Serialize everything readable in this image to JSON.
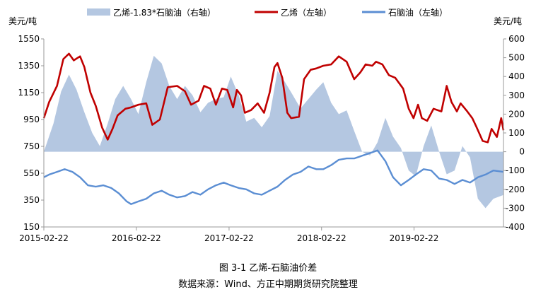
{
  "caption": {
    "figure": "图 3-1  乙烯-石脑油价差",
    "source": "数据来源：Wind、方正中期期货研究院整理"
  },
  "chart_data": {
    "type": "line",
    "left_axis": {
      "unit_label": "美元/吨",
      "ticks": [
        150,
        350,
        550,
        750,
        950,
        1150,
        1350,
        1550
      ],
      "range": [
        150,
        1550
      ]
    },
    "right_axis": {
      "unit_label": "美元/吨",
      "ticks": [
        -400,
        -300,
        -200,
        -100,
        0,
        100,
        200,
        300,
        400,
        500,
        600
      ],
      "range": [
        -400,
        600
      ]
    },
    "x_ticks": [
      "2015-02-22",
      "2016-02-22",
      "2017-02-22",
      "2018-02-22",
      "2019-02-22"
    ],
    "x_range": [
      "2015-02-22",
      "2020-02-10"
    ],
    "legend_position": "top",
    "colors": {
      "spread": "#b4c7e1",
      "ethylene": "#c00000",
      "naphtha": "#5b8ed3",
      "axis": "#999999"
    },
    "series": [
      {
        "name": "乙烯-1.83*石脑油（右轴）",
        "axis": "right",
        "render": "area",
        "points": [
          [
            "2015-02-22",
            0
          ],
          [
            "2015-04-01",
            150
          ],
          [
            "2015-05-01",
            320
          ],
          [
            "2015-06-01",
            410
          ],
          [
            "2015-07-01",
            330
          ],
          [
            "2015-08-01",
            210
          ],
          [
            "2015-09-01",
            100
          ],
          [
            "2015-10-01",
            30
          ],
          [
            "2015-11-01",
            150
          ],
          [
            "2015-12-01",
            280
          ],
          [
            "2016-01-01",
            350
          ],
          [
            "2016-02-01",
            280
          ],
          [
            "2016-03-01",
            200
          ],
          [
            "2016-04-01",
            370
          ],
          [
            "2016-05-01",
            510
          ],
          [
            "2016-06-01",
            470
          ],
          [
            "2016-07-01",
            350
          ],
          [
            "2016-08-01",
            280
          ],
          [
            "2016-09-01",
            350
          ],
          [
            "2016-10-01",
            300
          ],
          [
            "2016-11-01",
            210
          ],
          [
            "2016-12-01",
            260
          ],
          [
            "2017-01-01",
            280
          ],
          [
            "2017-02-01",
            290
          ],
          [
            "2017-03-01",
            400
          ],
          [
            "2017-04-01",
            300
          ],
          [
            "2017-05-01",
            160
          ],
          [
            "2017-06-01",
            180
          ],
          [
            "2017-07-01",
            130
          ],
          [
            "2017-08-01",
            190
          ],
          [
            "2017-09-01",
            430
          ],
          [
            "2017-10-01",
            370
          ],
          [
            "2017-11-01",
            300
          ],
          [
            "2017-12-01",
            230
          ],
          [
            "2018-01-01",
            280
          ],
          [
            "2018-02-01",
            330
          ],
          [
            "2018-03-01",
            370
          ],
          [
            "2018-04-01",
            260
          ],
          [
            "2018-05-01",
            200
          ],
          [
            "2018-06-01",
            220
          ],
          [
            "2018-07-01",
            110
          ],
          [
            "2018-08-01",
            0
          ],
          [
            "2018-09-01",
            -20
          ],
          [
            "2018-10-01",
            50
          ],
          [
            "2018-11-01",
            180
          ],
          [
            "2018-12-01",
            80
          ],
          [
            "2019-01-01",
            20
          ],
          [
            "2019-02-01",
            -100
          ],
          [
            "2019-03-01",
            -130
          ],
          [
            "2019-04-01",
            30
          ],
          [
            "2019-05-01",
            140
          ],
          [
            "2019-06-01",
            0
          ],
          [
            "2019-07-01",
            -120
          ],
          [
            "2019-08-01",
            -100
          ],
          [
            "2019-09-01",
            30
          ],
          [
            "2019-10-01",
            -30
          ],
          [
            "2019-11-01",
            -250
          ],
          [
            "2019-12-01",
            -300
          ],
          [
            "2020-01-01",
            -250
          ],
          [
            "2020-02-10",
            -230
          ]
        ]
      },
      {
        "name": "乙烯（左轴）",
        "axis": "left",
        "render": "line",
        "points": [
          [
            "2015-02-22",
            960
          ],
          [
            "2015-03-15",
            1080
          ],
          [
            "2015-04-15",
            1200
          ],
          [
            "2015-05-10",
            1400
          ],
          [
            "2015-06-01",
            1440
          ],
          [
            "2015-06-20",
            1390
          ],
          [
            "2015-07-15",
            1420
          ],
          [
            "2015-08-01",
            1340
          ],
          [
            "2015-08-25",
            1150
          ],
          [
            "2015-09-15",
            1050
          ],
          [
            "2015-10-10",
            890
          ],
          [
            "2015-11-01",
            800
          ],
          [
            "2015-11-20",
            880
          ],
          [
            "2015-12-10",
            980
          ],
          [
            "2016-01-10",
            1030
          ],
          [
            "2016-02-01",
            1040
          ],
          [
            "2016-03-01",
            1060
          ],
          [
            "2016-04-01",
            1070
          ],
          [
            "2016-04-25",
            910
          ],
          [
            "2016-05-25",
            950
          ],
          [
            "2016-06-25",
            1190
          ],
          [
            "2016-08-01",
            1200
          ],
          [
            "2016-09-01",
            1160
          ],
          [
            "2016-09-25",
            1060
          ],
          [
            "2016-10-25",
            1090
          ],
          [
            "2016-11-15",
            1200
          ],
          [
            "2016-12-10",
            1180
          ],
          [
            "2017-01-01",
            1060
          ],
          [
            "2017-01-25",
            1180
          ],
          [
            "2017-02-15",
            1170
          ],
          [
            "2017-03-10",
            1040
          ],
          [
            "2017-03-25",
            1170
          ],
          [
            "2017-04-10",
            1130
          ],
          [
            "2017-04-25",
            1000
          ],
          [
            "2017-05-20",
            1020
          ],
          [
            "2017-06-15",
            1070
          ],
          [
            "2017-07-10",
            1000
          ],
          [
            "2017-08-01",
            1150
          ],
          [
            "2017-08-20",
            1340
          ],
          [
            "2017-09-01",
            1370
          ],
          [
            "2017-09-20",
            1260
          ],
          [
            "2017-10-10",
            1000
          ],
          [
            "2017-10-25",
            960
          ],
          [
            "2017-11-25",
            970
          ],
          [
            "2017-12-15",
            1250
          ],
          [
            "2018-01-10",
            1320
          ],
          [
            "2018-02-01",
            1330
          ],
          [
            "2018-03-01",
            1350
          ],
          [
            "2018-04-01",
            1360
          ],
          [
            "2018-05-01",
            1420
          ],
          [
            "2018-06-01",
            1380
          ],
          [
            "2018-07-01",
            1250
          ],
          [
            "2018-07-25",
            1300
          ],
          [
            "2018-08-15",
            1360
          ],
          [
            "2018-09-10",
            1350
          ],
          [
            "2018-09-25",
            1380
          ],
          [
            "2018-10-20",
            1360
          ],
          [
            "2018-11-15",
            1280
          ],
          [
            "2018-12-10",
            1260
          ],
          [
            "2019-01-10",
            1180
          ],
          [
            "2019-02-01",
            1030
          ],
          [
            "2019-02-20",
            960
          ],
          [
            "2019-03-10",
            1060
          ],
          [
            "2019-03-25",
            960
          ],
          [
            "2019-04-15",
            940
          ],
          [
            "2019-05-10",
            1030
          ],
          [
            "2019-06-10",
            1010
          ],
          [
            "2019-07-01",
            1200
          ],
          [
            "2019-07-20",
            1080
          ],
          [
            "2019-08-10",
            1010
          ],
          [
            "2019-08-25",
            1070
          ],
          [
            "2019-09-20",
            1010
          ],
          [
            "2019-10-10",
            960
          ],
          [
            "2019-10-25",
            900
          ],
          [
            "2019-11-20",
            790
          ],
          [
            "2019-12-10",
            780
          ],
          [
            "2019-12-25",
            880
          ],
          [
            "2020-01-15",
            820
          ],
          [
            "2020-02-01",
            960
          ],
          [
            "2020-02-10",
            870
          ]
        ]
      },
      {
        "name": "石脑油（左轴）",
        "axis": "left",
        "render": "line",
        "points": [
          [
            "2015-02-22",
            520
          ],
          [
            "2015-03-15",
            540
          ],
          [
            "2015-04-15",
            560
          ],
          [
            "2015-05-15",
            580
          ],
          [
            "2015-06-15",
            560
          ],
          [
            "2015-07-15",
            520
          ],
          [
            "2015-08-15",
            460
          ],
          [
            "2015-09-15",
            450
          ],
          [
            "2015-10-15",
            460
          ],
          [
            "2015-11-15",
            440
          ],
          [
            "2015-12-15",
            400
          ],
          [
            "2016-01-15",
            340
          ],
          [
            "2016-02-01",
            320
          ],
          [
            "2016-03-01",
            340
          ],
          [
            "2016-04-01",
            360
          ],
          [
            "2016-05-01",
            400
          ],
          [
            "2016-06-01",
            420
          ],
          [
            "2016-07-01",
            390
          ],
          [
            "2016-08-01",
            370
          ],
          [
            "2016-09-01",
            380
          ],
          [
            "2016-10-01",
            410
          ],
          [
            "2016-11-01",
            390
          ],
          [
            "2016-12-01",
            430
          ],
          [
            "2017-01-01",
            460
          ],
          [
            "2017-02-01",
            480
          ],
          [
            "2017-03-01",
            460
          ],
          [
            "2017-04-01",
            440
          ],
          [
            "2017-05-01",
            430
          ],
          [
            "2017-06-01",
            400
          ],
          [
            "2017-07-01",
            390
          ],
          [
            "2017-08-01",
            420
          ],
          [
            "2017-09-01",
            450
          ],
          [
            "2017-10-01",
            500
          ],
          [
            "2017-11-01",
            540
          ],
          [
            "2017-12-01",
            560
          ],
          [
            "2018-01-01",
            600
          ],
          [
            "2018-02-01",
            580
          ],
          [
            "2018-03-01",
            580
          ],
          [
            "2018-04-01",
            610
          ],
          [
            "2018-05-01",
            650
          ],
          [
            "2018-06-01",
            660
          ],
          [
            "2018-07-01",
            660
          ],
          [
            "2018-08-01",
            680
          ],
          [
            "2018-09-01",
            700
          ],
          [
            "2018-10-01",
            720
          ],
          [
            "2018-11-01",
            640
          ],
          [
            "2018-12-01",
            520
          ],
          [
            "2019-01-01",
            460
          ],
          [
            "2019-02-01",
            500
          ],
          [
            "2019-03-01",
            540
          ],
          [
            "2019-04-01",
            580
          ],
          [
            "2019-05-01",
            570
          ],
          [
            "2019-06-01",
            510
          ],
          [
            "2019-07-01",
            500
          ],
          [
            "2019-08-01",
            470
          ],
          [
            "2019-09-01",
            500
          ],
          [
            "2019-10-01",
            480
          ],
          [
            "2019-11-01",
            520
          ],
          [
            "2019-12-01",
            540
          ],
          [
            "2020-01-01",
            570
          ],
          [
            "2020-02-10",
            560
          ]
        ]
      }
    ]
  }
}
